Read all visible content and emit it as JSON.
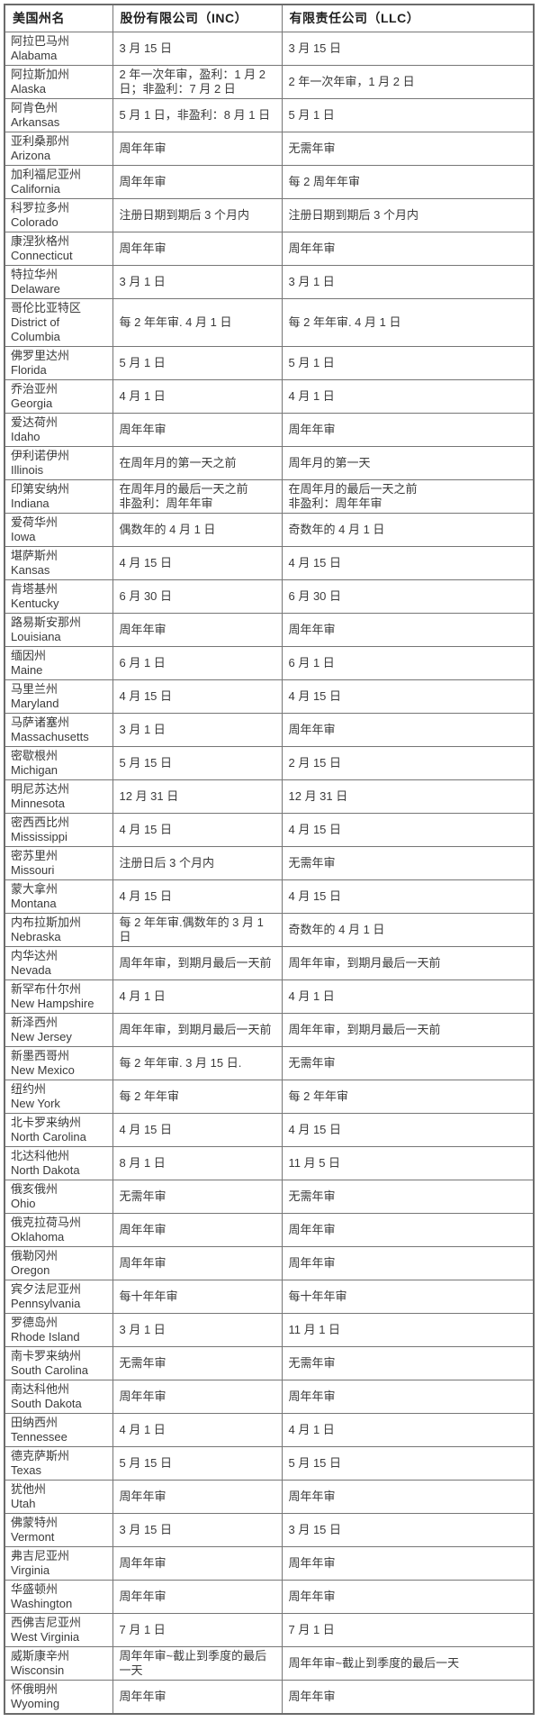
{
  "colors": {
    "background": "#ffffff",
    "border": "#767676",
    "header_text": "#1f1f1f",
    "body_text": "#3a3a3a"
  },
  "table": {
    "headers": [
      "美国州名",
      "股份有限公司（INC）",
      "有限责任公司（LLC）"
    ],
    "rows": [
      {
        "state_cn": "阿拉巴马州",
        "state_en": "Alabama",
        "inc": "3 月 15 日",
        "llc": "3 月 15 日"
      },
      {
        "state_cn": "阿拉斯加州",
        "state_en": "Alaska",
        "inc": "2 年一次年审，盈利：1 月 2 日；非盈利：7 月 2 日",
        "llc": "2 年一次年审，1 月 2 日"
      },
      {
        "state_cn": "阿肯色州",
        "state_en": "Arkansas",
        "inc": "5 月 1 日，非盈利：8 月 1 日",
        "llc": "5 月 1 日"
      },
      {
        "state_cn": "亚利桑那州",
        "state_en": "Arizona",
        "inc": "周年年审",
        "llc": "无需年审"
      },
      {
        "state_cn": "加利福尼亚州",
        "state_en": "California",
        "inc": "周年年审",
        "llc": "每 2 周年年审"
      },
      {
        "state_cn": "科罗拉多州",
        "state_en": "Colorado",
        "inc": "注册日期到期后 3 个月内",
        "llc": "注册日期到期后 3 个月内"
      },
      {
        "state_cn": "康涅狄格州",
        "state_en": "Connecticut",
        "inc": "周年年审",
        "llc": "周年年审"
      },
      {
        "state_cn": "特拉华州",
        "state_en": "Delaware",
        "inc": "3 月 1 日",
        "llc": "3 月 1 日"
      },
      {
        "state_cn": "哥伦比亚特区",
        "state_en": "District of Columbia",
        "inc": "每 2 年年审. 4 月 1 日",
        "llc": "每 2 年年审. 4 月 1 日"
      },
      {
        "state_cn": "佛罗里达州",
        "state_en": "Florida",
        "inc": "5 月 1 日",
        "llc": "5 月 1 日"
      },
      {
        "state_cn": "乔治亚州",
        "state_en": "Georgia",
        "inc": "4 月 1 日",
        "llc": "4 月 1 日"
      },
      {
        "state_cn": "爱达荷州",
        "state_en": "Idaho",
        "inc": "周年年审",
        "llc": "周年年审"
      },
      {
        "state_cn": "伊利诺伊州",
        "state_en": "Illinois",
        "inc": "在周年月的第一天之前",
        "llc": "周年月的第一天"
      },
      {
        "state_cn": "印第安纳州",
        "state_en": "Indiana",
        "inc": "在周年月的最后一天之前\n非盈利：周年年审",
        "llc": "在周年月的最后一天之前\n非盈利：周年年审"
      },
      {
        "state_cn": "爱荷华州",
        "state_en": "Iowa",
        "inc": "偶数年的 4 月 1 日",
        "llc": "奇数年的 4 月 1 日"
      },
      {
        "state_cn": "堪萨斯州",
        "state_en": "Kansas",
        "inc": "4 月 15 日",
        "llc": "4 月 15 日"
      },
      {
        "state_cn": "肯塔基州",
        "state_en": "Kentucky",
        "inc": "6 月 30 日",
        "llc": "6 月 30 日"
      },
      {
        "state_cn": "路易斯安那州",
        "state_en": "Louisiana",
        "inc": "周年年审",
        "llc": "周年年审"
      },
      {
        "state_cn": "缅因州",
        "state_en": "Maine",
        "inc": "6 月 1 日",
        "llc": "6 月 1 日"
      },
      {
        "state_cn": "马里兰州",
        "state_en": "Maryland",
        "inc": "4 月 15 日",
        "llc": "4 月 15 日"
      },
      {
        "state_cn": "马萨诸塞州",
        "state_en": "Massachusetts",
        "inc": "3 月 1 日",
        "llc": "周年年审"
      },
      {
        "state_cn": "密歇根州",
        "state_en": "Michigan",
        "inc": "5 月 15 日",
        "llc": "2 月 15 日"
      },
      {
        "state_cn": "明尼苏达州",
        "state_en": "Minnesota",
        "inc": "12 月 31 日",
        "llc": "12 月 31 日"
      },
      {
        "state_cn": "密西西比州",
        "state_en": "Mississippi",
        "inc": "4 月 15 日",
        "llc": "4 月 15 日"
      },
      {
        "state_cn": "密苏里州",
        "state_en": "Missouri",
        "inc": "注册日后 3 个月内",
        "llc": "无需年审"
      },
      {
        "state_cn": "蒙大拿州",
        "state_en": "Montana",
        "inc": "4 月 15 日",
        "llc": "4 月 15 日"
      },
      {
        "state_cn": "内布拉斯加州",
        "state_en": "Nebraska",
        "inc": "每 2 年年审.偶数年的 3 月 1 日",
        "llc": "奇数年的 4 月 1 日"
      },
      {
        "state_cn": "内华达州",
        "state_en": "Nevada",
        "inc": "周年年审，到期月最后一天前",
        "llc": "周年年审，到期月最后一天前"
      },
      {
        "state_cn": "新罕布什尔州",
        "state_en": "New Hampshire",
        "inc": "4 月 1 日",
        "llc": "4 月 1 日"
      },
      {
        "state_cn": "新泽西州",
        "state_en": "New Jersey",
        "inc": "周年年审，到期月最后一天前",
        "llc": "周年年审，到期月最后一天前"
      },
      {
        "state_cn": "新墨西哥州",
        "state_en": "New Mexico",
        "inc": "每 2 年年审. 3 月 15 日.",
        "llc": "无需年审"
      },
      {
        "state_cn": "纽约州",
        "state_en": "New York",
        "inc": "每 2 年年审",
        "llc": "每 2 年年审"
      },
      {
        "state_cn": "北卡罗来纳州",
        "state_en": "North Carolina",
        "inc": "4 月 15 日",
        "llc": "4 月 15 日"
      },
      {
        "state_cn": "北达科他州",
        "state_en": "North Dakota",
        "inc": "8 月 1 日",
        "llc": "11 月 5 日"
      },
      {
        "state_cn": "俄亥俄州",
        "state_en": "Ohio",
        "inc": "无需年审",
        "llc": "无需年审"
      },
      {
        "state_cn": "俄克拉荷马州",
        "state_en": "Oklahoma",
        "inc": "周年年审",
        "llc": "周年年审"
      },
      {
        "state_cn": "俄勒冈州",
        "state_en": "Oregon",
        "inc": "周年年审",
        "llc": "周年年审"
      },
      {
        "state_cn": "宾夕法尼亚州",
        "state_en": "Pennsylvania",
        "inc": "每十年年审",
        "llc": "每十年年审"
      },
      {
        "state_cn": "罗德岛州",
        "state_en": "Rhode Island",
        "inc": "3 月 1 日",
        "llc": "11 月 1 日"
      },
      {
        "state_cn": "南卡罗来纳州",
        "state_en": "South Carolina",
        "inc": "无需年审",
        "llc": "无需年审"
      },
      {
        "state_cn": "南达科他州",
        "state_en": "South Dakota",
        "inc": "周年年审",
        "llc": "周年年审"
      },
      {
        "state_cn": "田纳西州",
        "state_en": "Tennessee",
        "inc": "4 月 1 日",
        "llc": "4 月 1 日"
      },
      {
        "state_cn": "德克萨斯州",
        "state_en": "Texas",
        "inc": "5 月 15 日",
        "llc": "5 月 15 日"
      },
      {
        "state_cn": "犹他州",
        "state_en": "Utah",
        "inc": "周年年审",
        "llc": "周年年审"
      },
      {
        "state_cn": "佛蒙特州",
        "state_en": "Vermont",
        "inc": "3 月 15 日",
        "llc": "3 月 15 日"
      },
      {
        "state_cn": "弗吉尼亚州",
        "state_en": "Virginia",
        "inc": "周年年审",
        "llc": "周年年审"
      },
      {
        "state_cn": "华盛顿州",
        "state_en": "Washington",
        "inc": "周年年审",
        "llc": "周年年审"
      },
      {
        "state_cn": "西佛吉尼亚州",
        "state_en": "West Virginia",
        "inc": "7 月 1 日",
        "llc": "7 月 1 日"
      },
      {
        "state_cn": "威斯康辛州",
        "state_en": "Wisconsin",
        "inc": "周年年审~截止到季度的最后一天",
        "llc": "周年年审~截止到季度的最后一天"
      },
      {
        "state_cn": "怀俄明州",
        "state_en": "Wyoming",
        "inc": "周年年审",
        "llc": "周年年审"
      }
    ]
  }
}
